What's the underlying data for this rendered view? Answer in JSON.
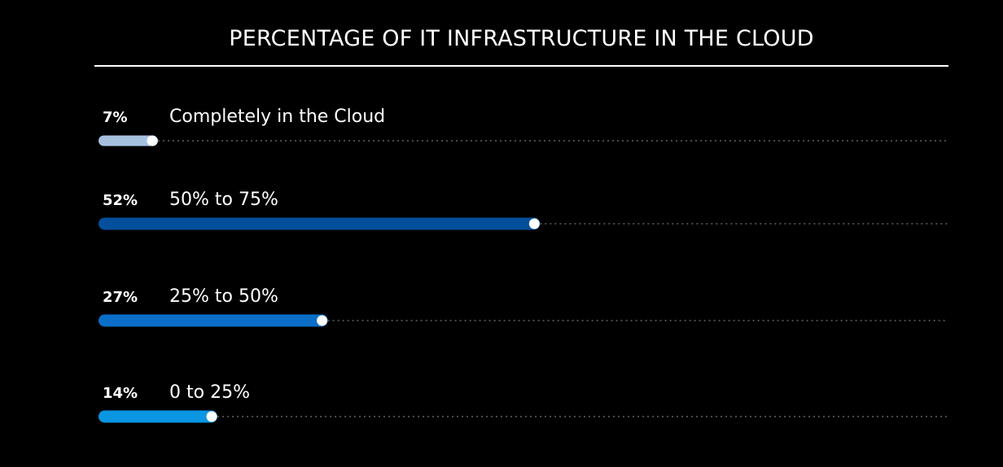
{
  "chart_data": {
    "type": "bar",
    "title": "PERCENTAGE OF IT INFRASTRUCTURE IN THE CLOUD",
    "categories": [
      "Completely in the Cloud",
      "50% to 75%",
      "25% to 50%",
      "0 to 25%"
    ],
    "values": [
      7,
      52,
      27,
      14
    ],
    "value_labels": [
      "7%",
      "52%",
      "27%",
      "14%"
    ],
    "bar_colors": [
      "#a6c0e0",
      "#044f9c",
      "#0a6ec8",
      "#0a96e2"
    ],
    "track_color": "#4a4a4a",
    "knob_color": "#ffffff",
    "xlim": [
      0,
      100
    ],
    "grid": false
  }
}
